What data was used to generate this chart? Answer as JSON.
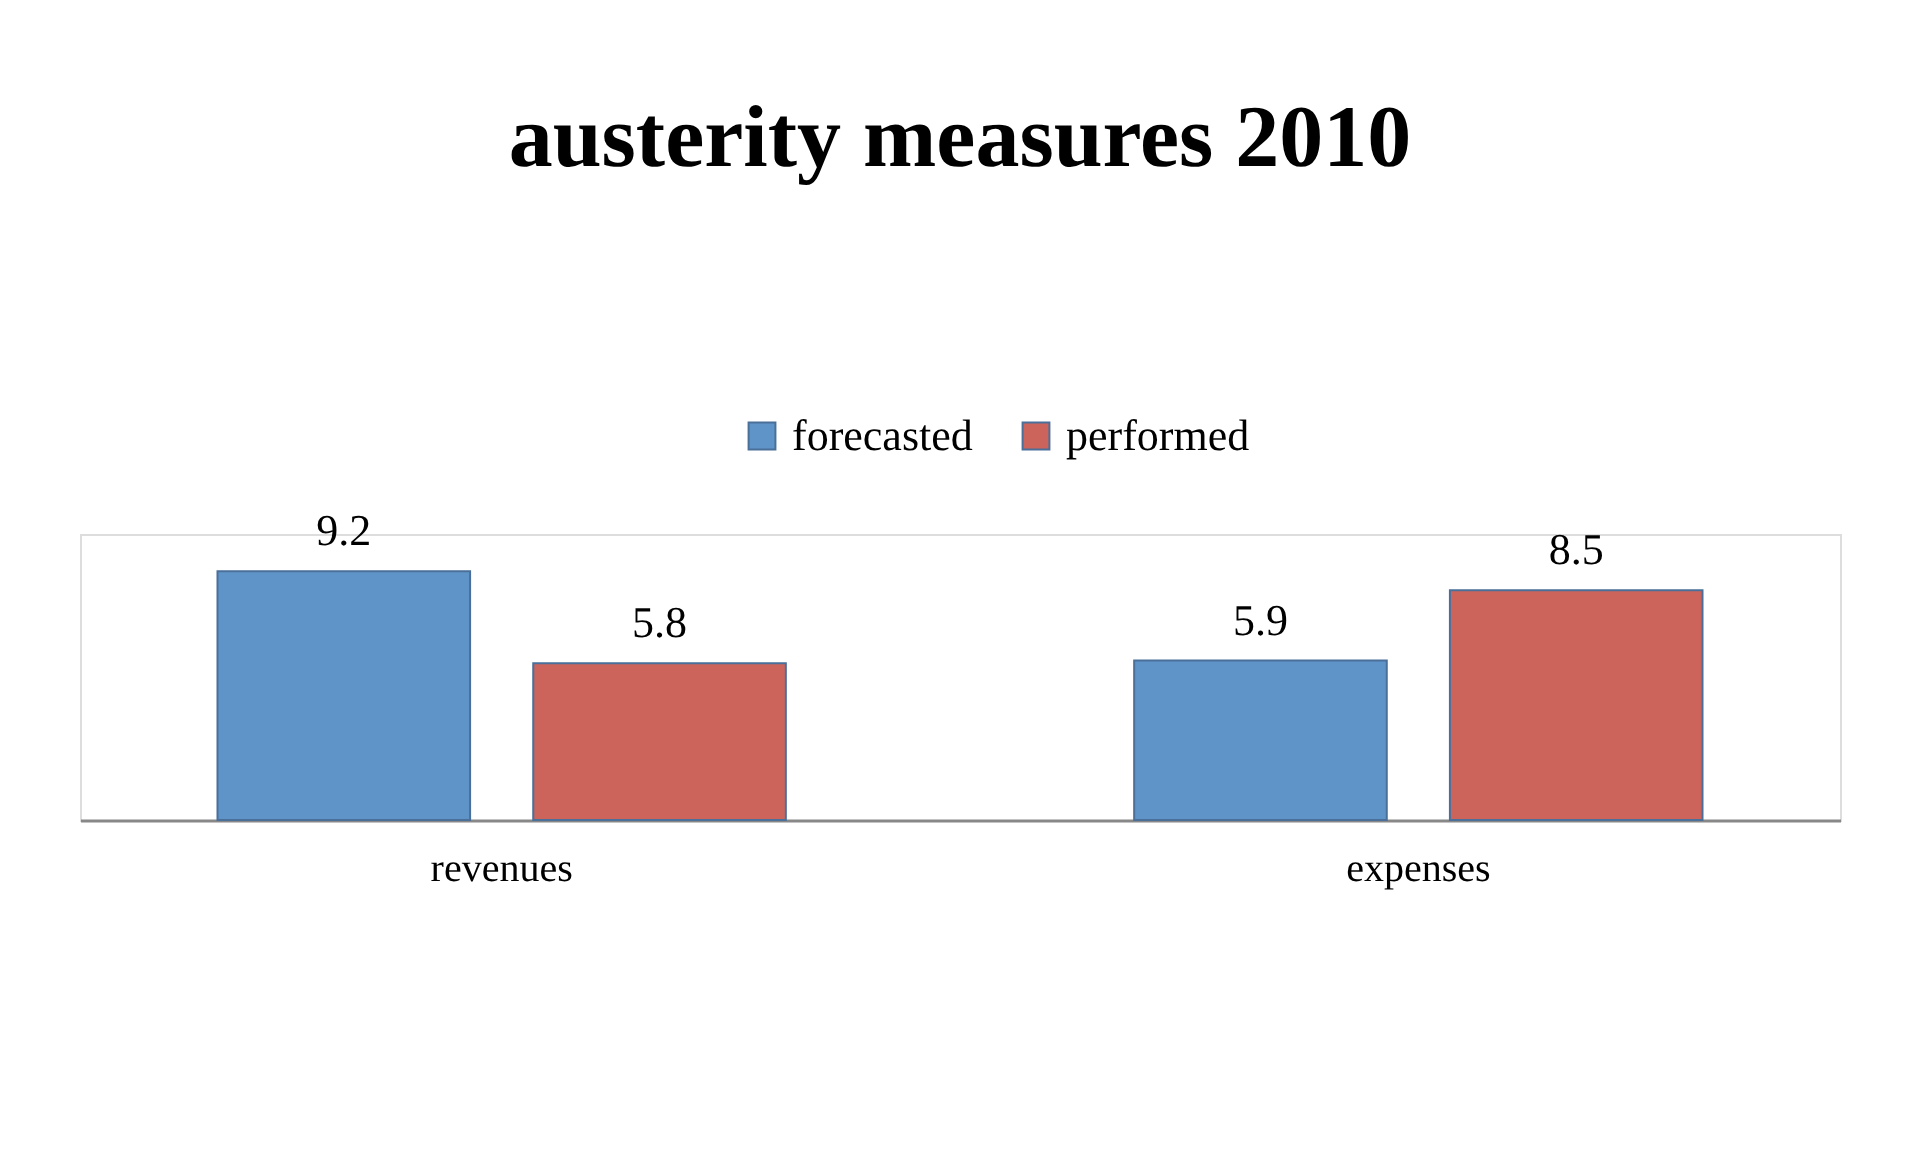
{
  "chart_data": {
    "type": "bar",
    "title": "austerity measures 2010",
    "categories": [
      "revenues",
      "expenses"
    ],
    "series": [
      {
        "name": "forecasted",
        "color": "#5f94c8",
        "values": [
          9.2,
          5.9
        ]
      },
      {
        "name": "performed",
        "color": "#cc645b",
        "values": [
          5.8,
          8.5
        ]
      }
    ],
    "data_labels": true,
    "legend": "top"
  }
}
